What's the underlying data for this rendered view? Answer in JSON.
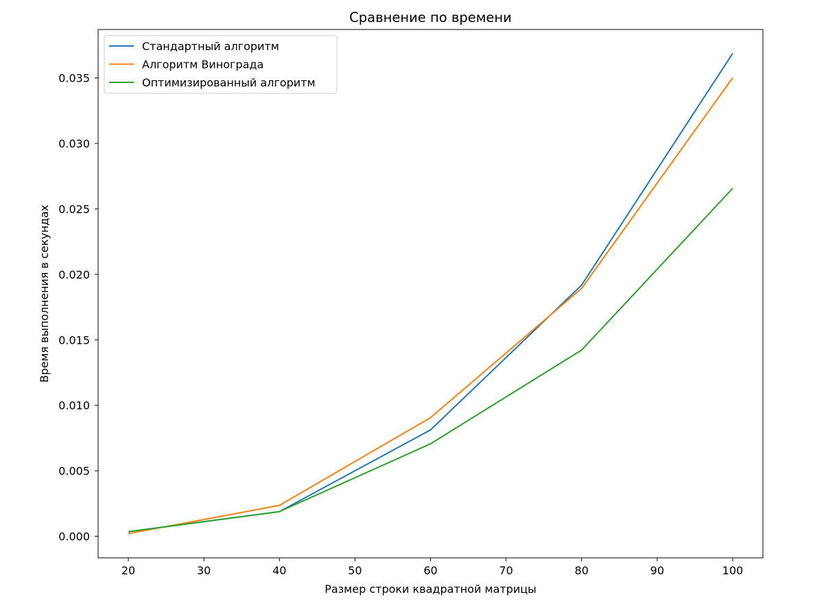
{
  "chart_data": {
    "type": "line",
    "title": "Сравнение по времени",
    "xlabel": "Размер строки квадратной матрицы",
    "ylabel": "Время выполнения в секундах",
    "x": [
      20,
      40,
      60,
      80,
      100
    ],
    "xlim": [
      16,
      104
    ],
    "ylim": [
      -0.00165,
      0.0387
    ],
    "xticks": [
      20,
      30,
      40,
      50,
      60,
      70,
      80,
      90,
      100
    ],
    "yticks": [
      0.0,
      0.005,
      0.01,
      0.015,
      0.02,
      0.025,
      0.03,
      0.035
    ],
    "ytick_labels": [
      "0.000",
      "0.005",
      "0.010",
      "0.015",
      "0.020",
      "0.025",
      "0.030",
      "0.035"
    ],
    "grid": false,
    "legend_position": "top-left",
    "series": [
      {
        "name": "Стандартный алгоритм",
        "color": "#1f77b4",
        "values": [
          0.00035,
          0.00188,
          0.00812,
          0.01918,
          0.03688
        ]
      },
      {
        "name": "Алгоритм Винограда",
        "color": "#ff7f0e",
        "values": [
          0.0002,
          0.00236,
          0.00906,
          0.01893,
          0.03502
        ]
      },
      {
        "name": "Оптимизированный алгоритм",
        "color": "#2ca02c",
        "values": [
          0.00035,
          0.00188,
          0.00706,
          0.01422,
          0.02657
        ]
      }
    ]
  }
}
